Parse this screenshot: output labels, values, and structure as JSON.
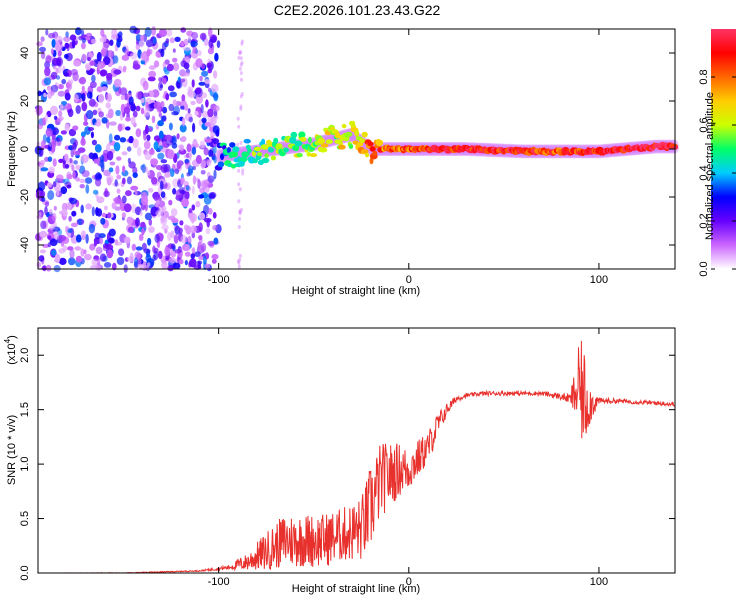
{
  "title": "C2E2.2026.101.23.43.G22",
  "chart_data": [
    {
      "type": "heatmap",
      "name": "spectrogram",
      "xlabel": "Height of straight line (km)",
      "ylabel": "Frequency (Hz)",
      "xlim": [
        -195,
        140
      ],
      "ylim": [
        -50,
        50
      ],
      "xticks": [
        -100,
        0,
        100
      ],
      "xtick_labels": [
        "-100",
        "0",
        "100"
      ],
      "yticks": [
        -40,
        -20,
        0,
        20,
        40
      ],
      "ytick_labels": [
        "-40",
        "-20",
        "0",
        "20",
        "40"
      ],
      "noise_region": {
        "x_from": -195,
        "x_to": -100,
        "level": "low amplitude random noise"
      },
      "signal_trace": {
        "x": [
          -100,
          -90,
          -80,
          -70,
          -60,
          -50,
          -40,
          -30,
          -25,
          -20,
          -10,
          0,
          10,
          30,
          60,
          90,
          100,
          115,
          130,
          140
        ],
        "freq": [
          -3,
          -2,
          -1,
          0,
          1,
          2,
          4,
          6,
          3,
          0,
          0,
          0,
          0,
          0,
          -1,
          -1,
          -1,
          0,
          1,
          1
        ],
        "amplitude": [
          0.35,
          0.45,
          0.5,
          0.55,
          0.55,
          0.6,
          0.6,
          0.65,
          0.7,
          0.8,
          0.8,
          0.85,
          0.85,
          0.9,
          0.9,
          0.85,
          0.9,
          0.95,
          0.95,
          0.95
        ]
      },
      "colorbar": {
        "label": "Normalized spectral amplitude",
        "range": [
          0,
          1
        ],
        "ticks": [
          0.0,
          0.2,
          0.4,
          0.6,
          0.8
        ],
        "tick_labels": [
          "0.0",
          "0.2",
          "0.4",
          "0.6",
          "0.8"
        ],
        "colors": [
          "#ffffff",
          "#cc66ff",
          "#6600ff",
          "#0000ff",
          "#00ccff",
          "#00ff66",
          "#ccff00",
          "#ffcc00",
          "#ff6600",
          "#ff0000",
          "#ff3366"
        ]
      }
    },
    {
      "type": "line",
      "name": "snr",
      "xlabel": "Height of straight line (km)",
      "ylabel": "SNR (10 * v/v)",
      "y_multiplier_label": "(x10",
      "y_multiplier_exp": "4",
      "xlim": [
        -195,
        140
      ],
      "ylim": [
        0,
        2.25
      ],
      "xticks": [
        -100,
        0,
        100
      ],
      "xtick_labels": [
        "-100",
        "0",
        "100"
      ],
      "yticks": [
        0.0,
        0.5,
        1.0,
        1.5,
        2.0
      ],
      "ytick_labels": [
        "0.0",
        "0.5",
        "1.0",
        "1.5",
        "2.0"
      ],
      "color": "#e8302c",
      "series": [
        {
          "name": "SNR",
          "x": [
            -195,
            -150,
            -110,
            -95,
            -85,
            -75,
            -65,
            -55,
            -45,
            -35,
            -25,
            -20,
            -15,
            -10,
            -5,
            0,
            5,
            10,
            15,
            20,
            25,
            30,
            40,
            50,
            60,
            70,
            80,
            85,
            90,
            92,
            95,
            100,
            110,
            120,
            130,
            140
          ],
          "values": [
            0.0,
            0.0,
            0.02,
            0.05,
            0.1,
            0.2,
            0.3,
            0.3,
            0.3,
            0.35,
            0.4,
            0.6,
            0.85,
            0.9,
            0.95,
            0.95,
            1.05,
            1.15,
            1.35,
            1.5,
            1.6,
            1.63,
            1.65,
            1.65,
            1.65,
            1.65,
            1.62,
            1.6,
            1.7,
            1.6,
            1.55,
            1.58,
            1.58,
            1.57,
            1.56,
            1.55
          ],
          "noise_amplitude": [
            0.0,
            0.003,
            0.005,
            0.02,
            0.08,
            0.18,
            0.25,
            0.25,
            0.25,
            0.25,
            0.3,
            0.4,
            0.35,
            0.3,
            0.25,
            0.2,
            0.18,
            0.15,
            0.12,
            0.06,
            0.03,
            0.02,
            0.02,
            0.02,
            0.02,
            0.02,
            0.03,
            0.05,
            0.45,
            0.5,
            0.2,
            0.03,
            0.02,
            0.02,
            0.02,
            0.02
          ]
        }
      ]
    }
  ]
}
